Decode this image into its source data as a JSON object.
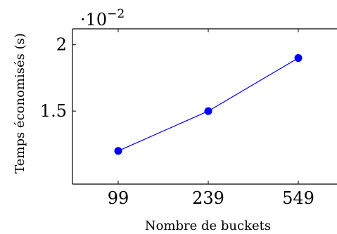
{
  "chart_data": {
    "type": "line",
    "title": "",
    "xlabel": "Nombre de buckets",
    "ylabel": "Temps économisés (s)",
    "categories": [
      "99",
      "239",
      "549"
    ],
    "series": [
      {
        "values": [
          0.012,
          0.015,
          0.019
        ]
      }
    ],
    "ylim": [
      0.0095,
      0.0212
    ],
    "y_ticks": [
      0.015,
      0.02
    ],
    "y_tick_labels": [
      "1.5",
      "2"
    ],
    "y_scale_base": "·10",
    "y_scale_exponent": "−2",
    "grid": false,
    "legend": "none",
    "colors": {
      "line": "#0000ff",
      "axis": "#000000"
    }
  }
}
